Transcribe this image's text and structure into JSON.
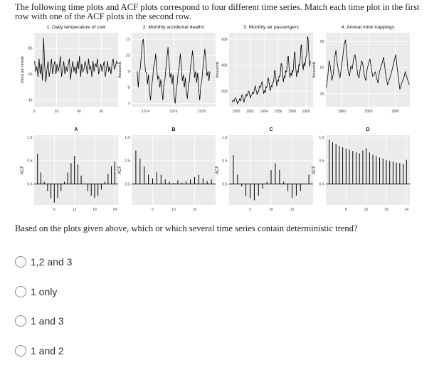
{
  "question": {
    "text": "The following time plots and ACF plots correspond to four different time series. Match each time plot in the first row with one of the ACF plots in the second row."
  },
  "chart_data": [
    {
      "type": "line",
      "title": "1. Daily temperature of cow",
      "ylabel": "chirps per minute",
      "xticks": [
        "0",
        "20",
        "40",
        "60"
      ],
      "yticks": [
        "40",
        "60",
        "80"
      ],
      "xlim": [
        0,
        75
      ],
      "ylim": [
        35,
        92
      ],
      "y": [
        70,
        62,
        66,
        58,
        72,
        60,
        68,
        55,
        88,
        66,
        54,
        64,
        70,
        58,
        64,
        72,
        60,
        66,
        70,
        60,
        68,
        62,
        66,
        74,
        58,
        64,
        70,
        60,
        66,
        62,
        68,
        72,
        56,
        64,
        70,
        62,
        66,
        60,
        70,
        64,
        74,
        58,
        68,
        62,
        64,
        70,
        66,
        60,
        72,
        64,
        66,
        58,
        70,
        62,
        68,
        66,
        72,
        60,
        64,
        68,
        62,
        66,
        70,
        58,
        64,
        70,
        62,
        66,
        60,
        68,
        72,
        64,
        66,
        70,
        68
      ]
    },
    {
      "type": "line",
      "title": "2. Monthly accidental deaths",
      "ylabel": "thousands",
      "xticks": [
        "1974",
        "1976",
        "1978"
      ],
      "yticks": [
        "7",
        "8",
        "9",
        "10",
        "11"
      ],
      "xlim": [
        1973,
        1979
      ],
      "ylim": [
        6.8,
        11.4
      ],
      "y": [
        9.0,
        8.0,
        8.9,
        9.2,
        10.0,
        10.8,
        11.0,
        10.0,
        9.0,
        8.9,
        8.2,
        8.8,
        7.7,
        7.2,
        8.1,
        8.5,
        9.3,
        9.5,
        10.1,
        9.2,
        8.5,
        8.7,
        8.0,
        8.5,
        7.8,
        7.2,
        8.2,
        8.5,
        9.2,
        9.8,
        10.5,
        9.6,
        8.6,
        8.9,
        8.2,
        8.8,
        7.4,
        7.0,
        7.8,
        8.2,
        9.0,
        9.3,
        10.1,
        9.3,
        8.4,
        8.8,
        8.0,
        8.6,
        7.7,
        7.3,
        8.2,
        8.4,
        9.3,
        9.7,
        10.3,
        9.5,
        8.6,
        9.0,
        8.3,
        8.9,
        7.8,
        7.2,
        8.1,
        8.4,
        9.2,
        9.8,
        10.4,
        9.6,
        8.7,
        9.0,
        8.4,
        9.0
      ]
    },
    {
      "type": "line",
      "title": "3. Monthly air passengers",
      "ylabel": "thousands",
      "xticks": [
        "1950",
        "1952",
        "1954",
        "1956",
        "1958",
        "1960"
      ],
      "yticks": [
        "200",
        "400",
        "600"
      ],
      "xlim": [
        1949,
        1961
      ],
      "ylim": [
        80,
        650
      ],
      "y": [
        112,
        118,
        132,
        129,
        121,
        135,
        148,
        148,
        136,
        119,
        104,
        118,
        115,
        126,
        141,
        135,
        125,
        149,
        170,
        170,
        158,
        133,
        114,
        140,
        145,
        150,
        178,
        163,
        172,
        178,
        199,
        199,
        184,
        162,
        146,
        166,
        171,
        180,
        193,
        181,
        183,
        218,
        230,
        242,
        209,
        191,
        172,
        194,
        196,
        196,
        236,
        235,
        229,
        243,
        264,
        272,
        237,
        211,
        180,
        201,
        204,
        188,
        235,
        227,
        234,
        264,
        302,
        293,
        259,
        229,
        203,
        229,
        242,
        233,
        267,
        269,
        270,
        315,
        364,
        347,
        312,
        274,
        237,
        278,
        284,
        277,
        317,
        313,
        318,
        374,
        413,
        405,
        355,
        306,
        271,
        306,
        315,
        301,
        356,
        348,
        355,
        422,
        465,
        467,
        404,
        347,
        305,
        336,
        340,
        318,
        362,
        348,
        363,
        435,
        491,
        505,
        404,
        359,
        310,
        337,
        360,
        342,
        406,
        396,
        420,
        472,
        548,
        559,
        463,
        407,
        362,
        405,
        417,
        391,
        419,
        461,
        472,
        535,
        622,
        606,
        508,
        461,
        390,
        432
      ]
    },
    {
      "type": "line",
      "title": "4. Annual mink trappings",
      "ylabel": "thousands",
      "xticks": [
        "1860",
        "1880",
        "1900"
      ],
      "yticks": [
        "30",
        "60",
        "90"
      ],
      "xlim": [
        1848,
        1911
      ],
      "ylim": [
        15,
        100
      ],
      "y": [
        37,
        50,
        68,
        60,
        45,
        52,
        70,
        80,
        65,
        55,
        48,
        60,
        72,
        86,
        92,
        75,
        55,
        50,
        62,
        58,
        70,
        75,
        65,
        52,
        48,
        60,
        68,
        62,
        50,
        45,
        58,
        65,
        70,
        60,
        50,
        52,
        55,
        48,
        42,
        55,
        60,
        65,
        72,
        60,
        48,
        40,
        45,
        50,
        55,
        62,
        68,
        75,
        60,
        48,
        35,
        40,
        45,
        48,
        55,
        50,
        45,
        40
      ]
    },
    {
      "type": "bar",
      "title": "A",
      "ylabel": "ACF",
      "xticks": [
        "6",
        "12",
        "18",
        "24"
      ],
      "yticks": [
        "0.0",
        "0.5",
        "1.0"
      ],
      "xlim": [
        0,
        25
      ],
      "ylim": [
        -0.45,
        1.05
      ],
      "x": [
        1,
        2,
        3,
        4,
        5,
        6,
        7,
        8,
        9,
        10,
        11,
        12,
        13,
        14,
        15,
        16,
        17,
        18,
        19,
        20,
        21,
        22,
        23,
        24
      ],
      "values": [
        0.65,
        0.25,
        0.05,
        -0.15,
        -0.3,
        -0.4,
        -0.3,
        -0.15,
        0.05,
        0.25,
        0.45,
        0.6,
        0.42,
        0.18,
        0.0,
        -0.15,
        -0.25,
        -0.3,
        -0.25,
        -0.12,
        0.05,
        0.22,
        0.38,
        0.48
      ]
    },
    {
      "type": "bar",
      "title": "B",
      "ylabel": "ACF",
      "xticks": [
        "5",
        "10",
        "15"
      ],
      "yticks": [
        "0.0",
        "0.5",
        "1.0"
      ],
      "xlim": [
        0,
        20
      ],
      "ylim": [
        -0.45,
        1.05
      ],
      "x": [
        1,
        2,
        3,
        4,
        5,
        6,
        7,
        8,
        9,
        10,
        11,
        12,
        13,
        14,
        15,
        16,
        17,
        18,
        19
      ],
      "values": [
        0.72,
        0.55,
        0.38,
        0.2,
        0.12,
        0.25,
        0.2,
        0.1,
        0.05,
        0.02,
        0.08,
        0.03,
        0.06,
        0.1,
        0.15,
        0.2,
        0.12,
        0.06,
        0.1
      ]
    },
    {
      "type": "bar",
      "title": "C",
      "ylabel": "ACF",
      "xticks": [
        "5",
        "10",
        "15"
      ],
      "yticks": [
        "0.0",
        "0.5",
        "1.0"
      ],
      "xlim": [
        0,
        20
      ],
      "ylim": [
        -0.45,
        1.05
      ],
      "x": [
        1,
        2,
        3,
        4,
        5,
        6,
        7,
        8,
        9,
        10,
        11,
        12,
        13,
        14,
        15,
        16,
        17,
        18,
        19
      ],
      "values": [
        0.62,
        0.2,
        -0.05,
        -0.25,
        -0.3,
        -0.35,
        -0.25,
        -0.1,
        0.05,
        0.3,
        0.45,
        0.3,
        0.05,
        -0.15,
        -0.3,
        -0.25,
        -0.15,
        0.0,
        0.2
      ]
    },
    {
      "type": "bar",
      "title": "D",
      "ylabel": "ACF",
      "xticks": [
        "6",
        "12",
        "18",
        "24"
      ],
      "yticks": [
        "0.0",
        "0.5",
        "1.0"
      ],
      "xlim": [
        0,
        25
      ],
      "ylim": [
        -0.45,
        1.05
      ],
      "x": [
        1,
        2,
        3,
        4,
        5,
        6,
        7,
        8,
        9,
        10,
        11,
        12,
        13,
        14,
        15,
        16,
        17,
        18,
        19,
        20,
        21,
        22,
        23,
        24
      ],
      "values": [
        0.95,
        0.9,
        0.86,
        0.82,
        0.79,
        0.76,
        0.74,
        0.71,
        0.68,
        0.66,
        0.72,
        0.77,
        0.68,
        0.63,
        0.6,
        0.57,
        0.55,
        0.52,
        0.5,
        0.48,
        0.46,
        0.45,
        0.43,
        0.52
      ]
    }
  ],
  "prompt": {
    "text": "Based on the plots given above, which or which several time series contain deterministic trend?"
  },
  "options": [
    {
      "label": "1,2 and 3"
    },
    {
      "label": "1 only"
    },
    {
      "label": "1 and 3"
    },
    {
      "label": "1 and 2"
    }
  ],
  "colors": {
    "panel_bg": "#ebebeb",
    "grid": "#ffffff",
    "line": "#000000",
    "zero_line": "#1a1a4a",
    "text": "#222222"
  }
}
